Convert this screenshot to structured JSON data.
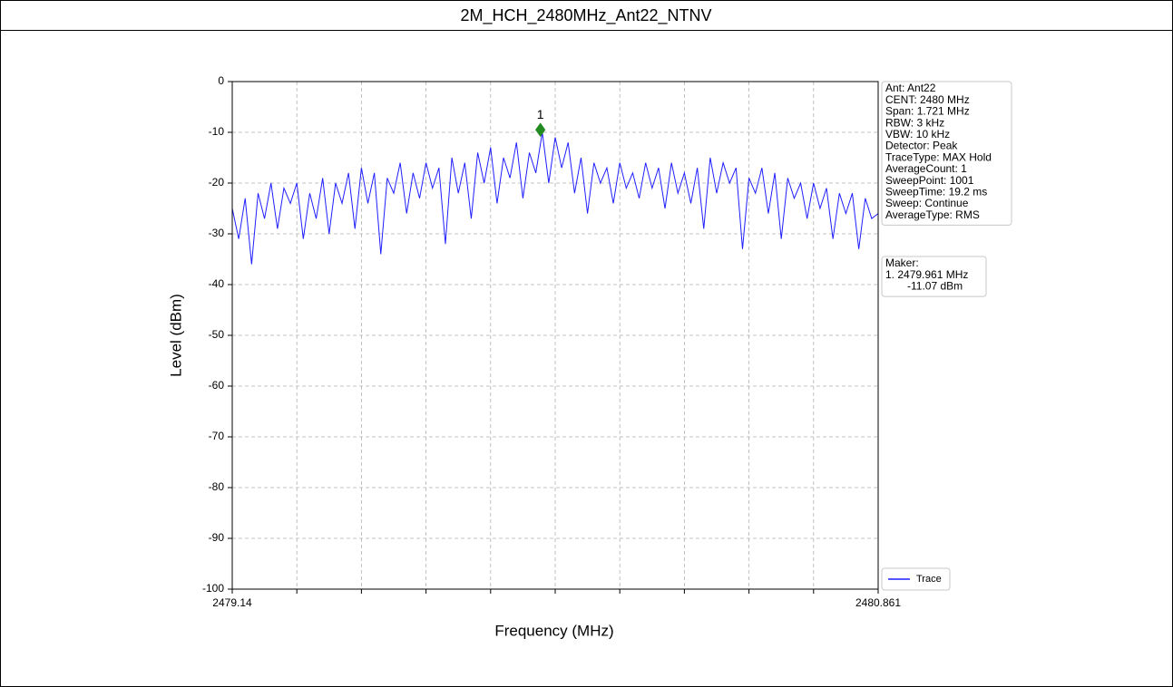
{
  "chart_data": {
    "type": "line",
    "title": "2M_HCH_2480MHz_Ant22_NTNV",
    "x_label": "Frequency (MHz)",
    "y_label": "Level (dBm)",
    "xlim": [
      2479.14,
      2480.861
    ],
    "xticks": [
      2479.14,
      {
        "value": 2479.3121,
        "label": null
      },
      {
        "value": 2479.4842,
        "label": null
      },
      {
        "value": 2479.6563,
        "label": null
      },
      {
        "value": 2479.8284,
        "label": null
      },
      {
        "value": 2480.0005,
        "label": null
      },
      {
        "value": 2480.1726,
        "label": null
      },
      {
        "value": 2480.3447,
        "label": null
      },
      {
        "value": 2480.5168,
        "label": null
      },
      {
        "value": 2480.6889,
        "label": null
      },
      2480.861
    ],
    "ylim": [
      -100,
      0
    ],
    "yticks": [
      0,
      -10,
      -20,
      -30,
      -40,
      -50,
      -60,
      -70,
      -80,
      -90,
      -100
    ],
    "grid": true,
    "legend_position": "lower right",
    "series": [
      {
        "name": "Trace",
        "color": "#1f1fff",
        "x": [
          2479.14,
          2479.15721,
          2479.17442,
          2479.19163,
          2479.20884,
          2479.22605,
          2479.24326,
          2479.26047,
          2479.27768,
          2479.29489,
          2479.3121,
          2479.32931,
          2479.34652,
          2479.36373,
          2479.38094,
          2479.39815,
          2479.41536,
          2479.43257,
          2479.44978,
          2479.46699,
          2479.4842,
          2479.50141,
          2479.51862,
          2479.53583,
          2479.55304,
          2479.57025,
          2479.58746,
          2479.60467,
          2479.62188,
          2479.63909,
          2479.6563,
          2479.67351,
          2479.69072,
          2479.70793,
          2479.72514,
          2479.74235,
          2479.75956,
          2479.77677,
          2479.79398,
          2479.81119,
          2479.8284,
          2479.84561,
          2479.86282,
          2479.88003,
          2479.89724,
          2479.91445,
          2479.93166,
          2479.94887,
          2479.96608,
          2479.98329,
          2480.0005,
          2480.01771,
          2480.03492,
          2480.05213,
          2480.06934,
          2480.08655,
          2480.10376,
          2480.12097,
          2480.13818,
          2480.15539,
          2480.1726,
          2480.18981,
          2480.20702,
          2480.22423,
          2480.24144,
          2480.25865,
          2480.27586,
          2480.29307,
          2480.31028,
          2480.32749,
          2480.3447,
          2480.36191,
          2480.37912,
          2480.39633,
          2480.41354,
          2480.43075,
          2480.44796,
          2480.46517,
          2480.48238,
          2480.49959,
          2480.5168,
          2480.53401,
          2480.55122,
          2480.56843,
          2480.58564,
          2480.60285,
          2480.62006,
          2480.63727,
          2480.65448,
          2480.67169,
          2480.6889,
          2480.70611,
          2480.72332,
          2480.74053,
          2480.75774,
          2480.77495,
          2480.79216,
          2480.80937,
          2480.82658,
          2480.84379,
          2480.861
        ],
        "values": [
          -25,
          -31,
          -23,
          -36,
          -22,
          -27,
          -20,
          -29,
          -21,
          -24,
          -20,
          -31,
          -22,
          -27,
          -19,
          -30,
          -20,
          -24,
          -18,
          -29,
          -17,
          -24,
          -18,
          -34,
          -19,
          -22,
          -16,
          -26,
          -18,
          -23,
          -16,
          -21,
          -17,
          -32,
          -15,
          -22,
          -16,
          -27,
          -14,
          -20,
          -13,
          -24,
          -15,
          -19,
          -12,
          -23,
          -14,
          -18,
          -10,
          -20,
          -11,
          -17,
          -12,
          -22,
          -15,
          -26,
          -16,
          -20,
          -17,
          -24,
          -16,
          -21,
          -18,
          -23,
          -16,
          -21,
          -17,
          -25,
          -16,
          -22,
          -18,
          -24,
          -17,
          -29,
          -15,
          -22,
          -16,
          -20,
          -17,
          -33,
          -19,
          -22,
          -17,
          -26,
          -18,
          -31,
          -19,
          -23,
          -20,
          -27,
          -20,
          -25,
          -21,
          -31,
          -22,
          -26,
          -22,
          -33,
          -23,
          -27,
          -26
        ]
      }
    ],
    "marker": {
      "label": "1",
      "x": 2479.961,
      "y": -9.5,
      "color": "#228b22"
    },
    "info_box": [
      "Ant: Ant22",
      "CENT: 2480 MHz",
      "Span: 1.721 MHz",
      "RBW: 3 kHz",
      "VBW: 10 kHz",
      "Detector: Peak",
      "TraceType: MAX Hold",
      "AverageCount: 1",
      "SweepPoint: 1001",
      "SweepTime: 19.2 ms",
      "Sweep: Continue",
      "AverageType: RMS"
    ],
    "marker_box": [
      "Maker:",
      "1. 2479.961 MHz",
      "-11.07 dBm"
    ]
  }
}
